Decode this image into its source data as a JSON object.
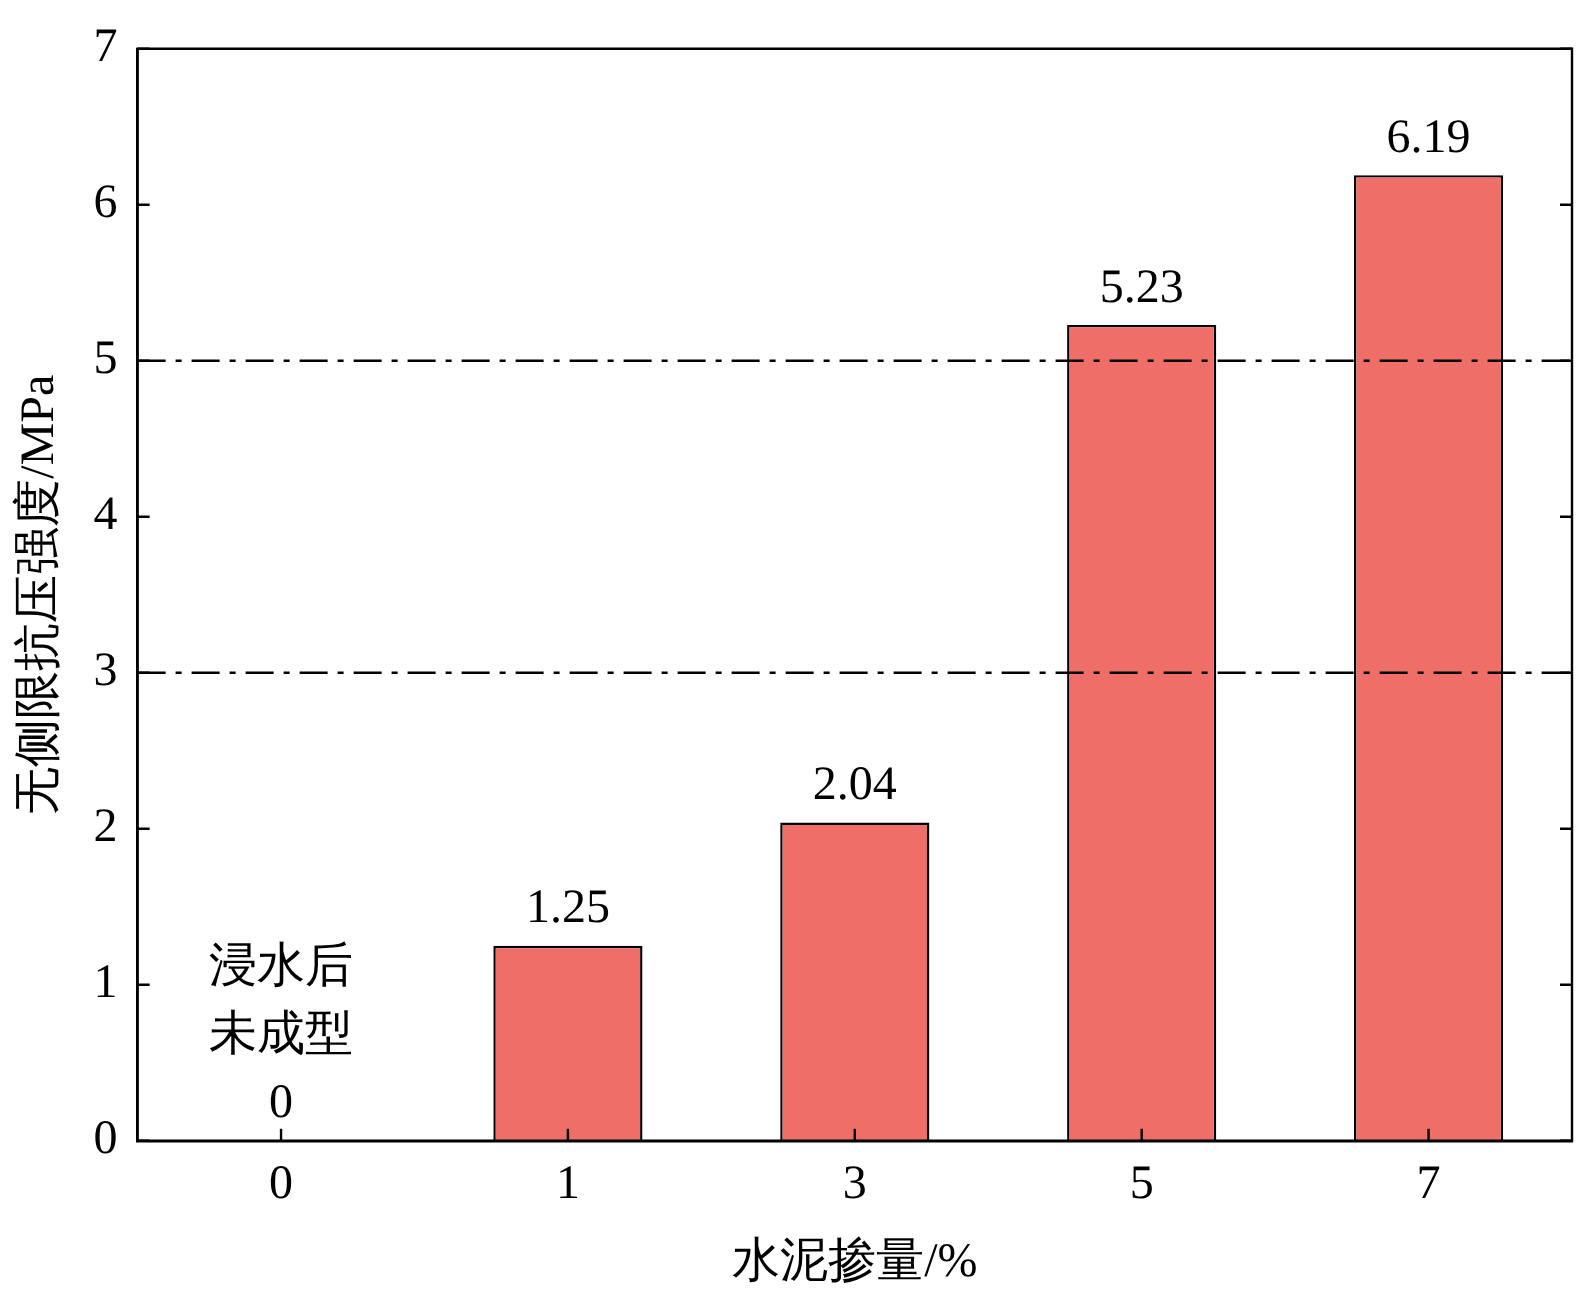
{
  "chart_data": {
    "type": "bar",
    "xlabel": "水泥掺量/%",
    "ylabel": "无侧限抗压强度/MPa",
    "categories": [
      "0",
      "1",
      "3",
      "5",
      "7"
    ],
    "values": [
      0,
      1.25,
      2.04,
      5.23,
      6.19
    ],
    "color": "#ef6e68",
    "ylim": [
      0,
      7
    ],
    "yticks": [
      0,
      1,
      2,
      3,
      4,
      5,
      6,
      7
    ],
    "data_labels": true,
    "annotations": [
      {
        "text": "浸水后未成型",
        "x": "0",
        "y": 0
      }
    ],
    "ref_lines": [
      {
        "axis": "y",
        "value": 3,
        "color": "#000000",
        "line_style": "dashed"
      },
      {
        "axis": "y",
        "value": 5,
        "color": "#000000",
        "line_style": "dashed"
      }
    ],
    "grid": false,
    "legend": false
  }
}
